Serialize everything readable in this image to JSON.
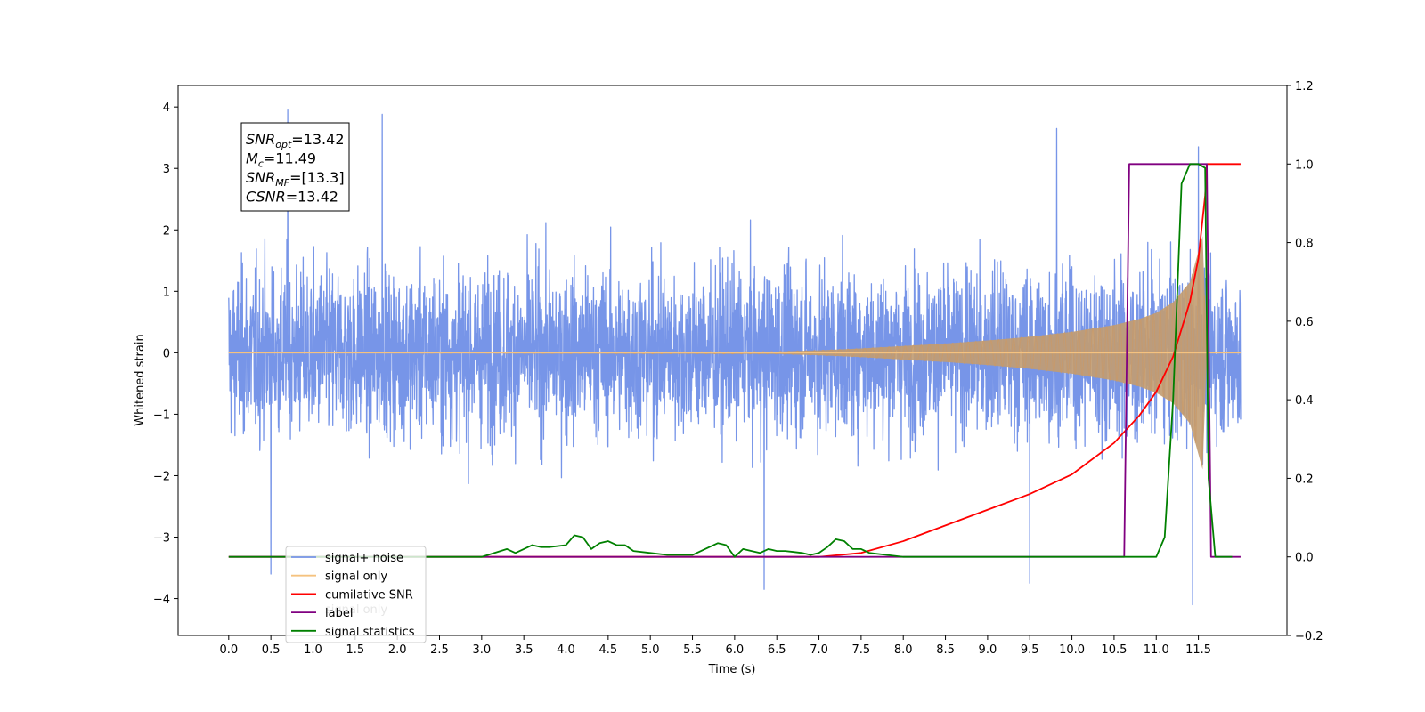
{
  "chart_data": {
    "type": "line",
    "title": "",
    "xlabel": "Time (s)",
    "ylabel": "Whitened strain",
    "ylabel_right": "",
    "xlim": [
      -0.6,
      12.55
    ],
    "ylim": [
      -4.6,
      4.35
    ],
    "ylim_right": [
      -0.2,
      1.2
    ],
    "x_ticks": [
      "0.0",
      "0.5",
      "1.0",
      "1.5",
      "2.0",
      "2.5",
      "3.0",
      "3.5",
      "4.0",
      "4.5",
      "5.0",
      "5.5",
      "6.0",
      "6.5",
      "7.0",
      "7.5",
      "8.0",
      "8.5",
      "9.0",
      "9.5",
      "10.0",
      "10.5",
      "11.0",
      "11.5"
    ],
    "y_ticks": [
      "4",
      "3",
      "2",
      "1",
      "0",
      "−1",
      "−2",
      "−3",
      "−4"
    ],
    "y_ticks_right": [
      "1.2",
      "1.0",
      "0.8",
      "0.6",
      "0.4",
      "0.2",
      "0.0",
      "−0.2"
    ],
    "grid": false,
    "legend_position": "lower-left",
    "legend": [
      {
        "label": "signal+ noise",
        "color": "#7795e8"
      },
      {
        "label": "signal only",
        "color": "#f5c27f"
      },
      {
        "label": "cumilative SNR",
        "color": "#ff0000"
      },
      {
        "label": "label",
        "color": "#800080"
      },
      {
        "label": "signal statistics",
        "color": "#008000"
      }
    ],
    "overlapped_legend_text": "signal only",
    "annotation": [
      {
        "base": "SNR",
        "sub": "opt",
        "value": "=13.42"
      },
      {
        "base": "M",
        "sub": "c",
        "value": "=11.49"
      },
      {
        "base": "SNR",
        "sub": "MF",
        "value": "=[13.3]"
      },
      {
        "base": "CSNR",
        "sub": "",
        "value": "=13.42"
      }
    ],
    "series": [
      {
        "name": "signal+ noise",
        "axis": "left",
        "color": "#7795e8",
        "x_start": 0.0,
        "x_end": 12.0,
        "envelope": [
          -2.4,
          2.5
        ],
        "note_peaks": [
          {
            "x": 0.7,
            "y": 3.95
          },
          {
            "x": 1.82,
            "y": 3.88
          },
          {
            "x": 9.82,
            "y": 3.65
          },
          {
            "x": 11.5,
            "y": 3.35
          },
          {
            "x": 6.35,
            "y": -3.85
          },
          {
            "x": 11.43,
            "y": -4.1
          },
          {
            "x": 9.5,
            "y": -3.75
          },
          {
            "x": 0.5,
            "y": -3.6
          }
        ]
      },
      {
        "name": "signal only",
        "axis": "left",
        "color": "#f5c27f",
        "x": [
          0.0,
          6.5,
          7.0,
          7.5,
          8.0,
          8.5,
          9.0,
          9.5,
          10.0,
          10.5,
          10.8,
          11.0,
          11.2,
          11.4,
          11.55,
          11.6,
          12.0
        ],
        "envelope": [
          0.0,
          0.02,
          0.04,
          0.07,
          0.11,
          0.15,
          0.2,
          0.26,
          0.34,
          0.45,
          0.55,
          0.65,
          0.82,
          1.15,
          1.9,
          0.0,
          0.0
        ]
      },
      {
        "name": "cumilative SNR",
        "axis": "right",
        "color": "#ff0000",
        "x": [
          0.0,
          7.0,
          7.5,
          8.0,
          8.5,
          9.0,
          9.5,
          10.0,
          10.5,
          10.8,
          11.0,
          11.2,
          11.4,
          11.5,
          11.58,
          11.6,
          12.0
        ],
        "y": [
          0.0,
          0.0,
          0.01,
          0.04,
          0.08,
          0.12,
          0.16,
          0.21,
          0.29,
          0.36,
          0.42,
          0.51,
          0.65,
          0.76,
          0.92,
          1.0,
          1.0
        ]
      },
      {
        "name": "label",
        "axis": "right",
        "color": "#800080",
        "x": [
          0.0,
          10.62,
          10.68,
          11.6,
          11.65,
          12.0
        ],
        "y": [
          0.0,
          0.0,
          1.0,
          1.0,
          0.0,
          0.0
        ]
      },
      {
        "name": "signal statistics",
        "axis": "right",
        "color": "#008000",
        "x": [
          0.0,
          3.0,
          3.3,
          3.4,
          3.5,
          3.6,
          3.7,
          3.8,
          4.0,
          4.1,
          4.2,
          4.3,
          4.4,
          4.5,
          4.6,
          4.7,
          4.8,
          5.0,
          5.2,
          5.5,
          5.7,
          5.8,
          5.9,
          6.0,
          6.1,
          6.2,
          6.3,
          6.4,
          6.5,
          6.6,
          6.8,
          6.9,
          7.0,
          7.1,
          7.2,
          7.3,
          7.4,
          7.5,
          7.6,
          7.8,
          8.0,
          8.5,
          9.0,
          10.0,
          11.0,
          11.1,
          11.2,
          11.3,
          11.4,
          11.5,
          11.58,
          11.62,
          11.7,
          11.9
        ],
        "y": [
          0.0,
          0.0,
          0.02,
          0.01,
          0.02,
          0.03,
          0.025,
          0.025,
          0.03,
          0.055,
          0.05,
          0.02,
          0.035,
          0.04,
          0.03,
          0.03,
          0.015,
          0.01,
          0.005,
          0.005,
          0.025,
          0.035,
          0.03,
          0.0,
          0.02,
          0.015,
          0.01,
          0.02,
          0.015,
          0.015,
          0.01,
          0.005,
          0.01,
          0.025,
          0.045,
          0.04,
          0.02,
          0.02,
          0.01,
          0.005,
          0.0,
          0.0,
          0.0,
          0.0,
          0.0,
          0.05,
          0.4,
          0.95,
          1.0,
          1.0,
          0.99,
          0.2,
          0.0,
          0.0
        ]
      }
    ]
  }
}
